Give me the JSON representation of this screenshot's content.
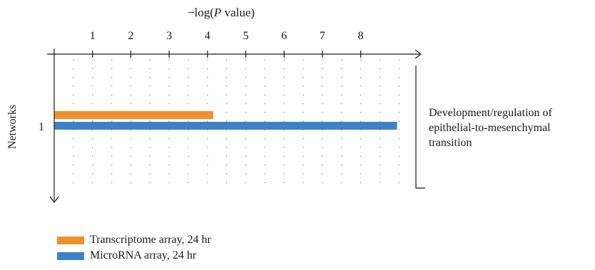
{
  "chart_data": {
    "type": "bar",
    "orientation": "horizontal",
    "xlabel_prefix": "−log(",
    "xlabel_italic": "P",
    "xlabel_suffix": " value)",
    "ylabel": "Networks",
    "xlim": [
      0,
      9.25
    ],
    "x_ticks": [
      1,
      2,
      3,
      4,
      5,
      6,
      7,
      8
    ],
    "categories": [
      "1"
    ],
    "category_annotation_lines": [
      "Development/regulation of",
      "epithelial-to-mesenchymal",
      "transition"
    ],
    "series": [
      {
        "name": "Transcriptome array, 24 hr",
        "color": "#f18f2b",
        "values": [
          4.15
        ]
      },
      {
        "name": "MicroRNA array, 24 hr",
        "color": "#3d82c6",
        "values": [
          8.95
        ]
      }
    ],
    "grid": "dotted",
    "legend_position": "bottom-left"
  }
}
